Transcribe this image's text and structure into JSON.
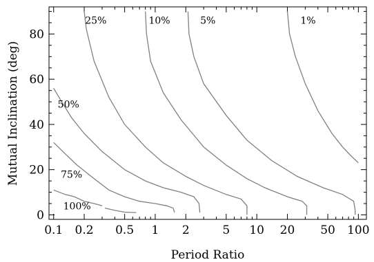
{
  "chart_data": {
    "type": "line",
    "xlabel": "Period Ratio",
    "ylabel": "Mutual Inclination (deg)",
    "xscale": "log",
    "xlim": [
      0.09,
      120
    ],
    "ylim": [
      -2,
      92
    ],
    "x_ticks": [
      {
        "value": 0.1,
        "label": "0.1"
      },
      {
        "value": 0.2,
        "label": "0.2"
      },
      {
        "value": 0.5,
        "label": "0.5"
      },
      {
        "value": 1,
        "label": "1"
      },
      {
        "value": 2,
        "label": "2"
      },
      {
        "value": 5,
        "label": "5"
      },
      {
        "value": 10,
        "label": "10"
      },
      {
        "value": 20,
        "label": "20"
      },
      {
        "value": 50,
        "label": "50"
      },
      {
        "value": 100,
        "label": "100"
      }
    ],
    "y_ticks": [
      {
        "value": 0,
        "label": "0"
      },
      {
        "value": 20,
        "label": "20"
      },
      {
        "value": 40,
        "label": "40"
      },
      {
        "value": 60,
        "label": "60"
      },
      {
        "value": 80,
        "label": "80"
      }
    ],
    "grid": false,
    "series": [
      {
        "name": "100%",
        "label_at": [
          0.17,
          4
        ],
        "points": [
          [
            0.1,
            11
          ],
          [
            0.13,
            9
          ],
          [
            0.16,
            8
          ],
          [
            0.2,
            6
          ],
          [
            0.25,
            5
          ],
          [
            0.3,
            4
          ]
        ]
      },
      {
        "name": "100%-b",
        "label_at": null,
        "points": [
          [
            0.32,
            3
          ],
          [
            0.4,
            2
          ],
          [
            0.5,
            1.2
          ],
          [
            0.65,
            1
          ]
        ]
      },
      {
        "name": "75%",
        "label_at": [
          0.15,
          18
        ],
        "points": [
          [
            0.1,
            32
          ],
          [
            0.13,
            27
          ],
          [
            0.17,
            22
          ],
          [
            0.25,
            16
          ],
          [
            0.35,
            11
          ],
          [
            0.5,
            8
          ],
          [
            0.7,
            6
          ],
          [
            1.0,
            5
          ],
          [
            1.3,
            4
          ],
          [
            1.5,
            3
          ],
          [
            1.55,
            1
          ]
        ]
      },
      {
        "name": "50%",
        "label_at": [
          0.14,
          49
        ],
        "points": [
          [
            0.1,
            56
          ],
          [
            0.12,
            50
          ],
          [
            0.15,
            43
          ],
          [
            0.2,
            36
          ],
          [
            0.3,
            28
          ],
          [
            0.5,
            20
          ],
          [
            0.8,
            15
          ],
          [
            1.2,
            12
          ],
          [
            1.8,
            10
          ],
          [
            2.4,
            8
          ],
          [
            2.7,
            5
          ],
          [
            2.75,
            1
          ]
        ]
      },
      {
        "name": "25%",
        "label_at": [
          0.26,
          86
        ],
        "points": [
          [
            0.2,
            90
          ],
          [
            0.21,
            82
          ],
          [
            0.25,
            68
          ],
          [
            0.35,
            52
          ],
          [
            0.5,
            40
          ],
          [
            0.8,
            30
          ],
          [
            1.2,
            23
          ],
          [
            2.0,
            17
          ],
          [
            3.0,
            13
          ],
          [
            5.0,
            9
          ],
          [
            7.0,
            7
          ],
          [
            8.0,
            4
          ],
          [
            8.0,
            0
          ]
        ]
      },
      {
        "name": "10%",
        "label_at": [
          1.1,
          86
        ],
        "points": [
          [
            0.8,
            90
          ],
          [
            0.82,
            80
          ],
          [
            0.9,
            68
          ],
          [
            1.2,
            54
          ],
          [
            1.8,
            42
          ],
          [
            3.0,
            30
          ],
          [
            5.0,
            22
          ],
          [
            8.0,
            16
          ],
          [
            12.0,
            12
          ],
          [
            20.0,
            8
          ],
          [
            28.0,
            6
          ],
          [
            31.0,
            4
          ],
          [
            31.0,
            0
          ]
        ]
      },
      {
        "name": "5%",
        "label_at": [
          3.3,
          86
        ],
        "points": [
          [
            2.1,
            90
          ],
          [
            2.15,
            80
          ],
          [
            2.4,
            70
          ],
          [
            3.0,
            58
          ],
          [
            5.0,
            44
          ],
          [
            8.0,
            33
          ],
          [
            14.0,
            24
          ],
          [
            25.0,
            17
          ],
          [
            45.0,
            12
          ],
          [
            70.0,
            9
          ],
          [
            90.0,
            6
          ],
          [
            93.0,
            2
          ],
          [
            93.0,
            0
          ]
        ]
      },
      {
        "name": "1%",
        "label_at": [
          32,
          86
        ],
        "points": [
          [
            20,
            90
          ],
          [
            21,
            80
          ],
          [
            24,
            70
          ],
          [
            30,
            58
          ],
          [
            40,
            46
          ],
          [
            55,
            36
          ],
          [
            70,
            30
          ],
          [
            85,
            26
          ],
          [
            100,
            23
          ]
        ]
      }
    ],
    "contour_labels": [
      "25%",
      "10%",
      "5%",
      "1%",
      "50%",
      "75%",
      "100%"
    ]
  }
}
